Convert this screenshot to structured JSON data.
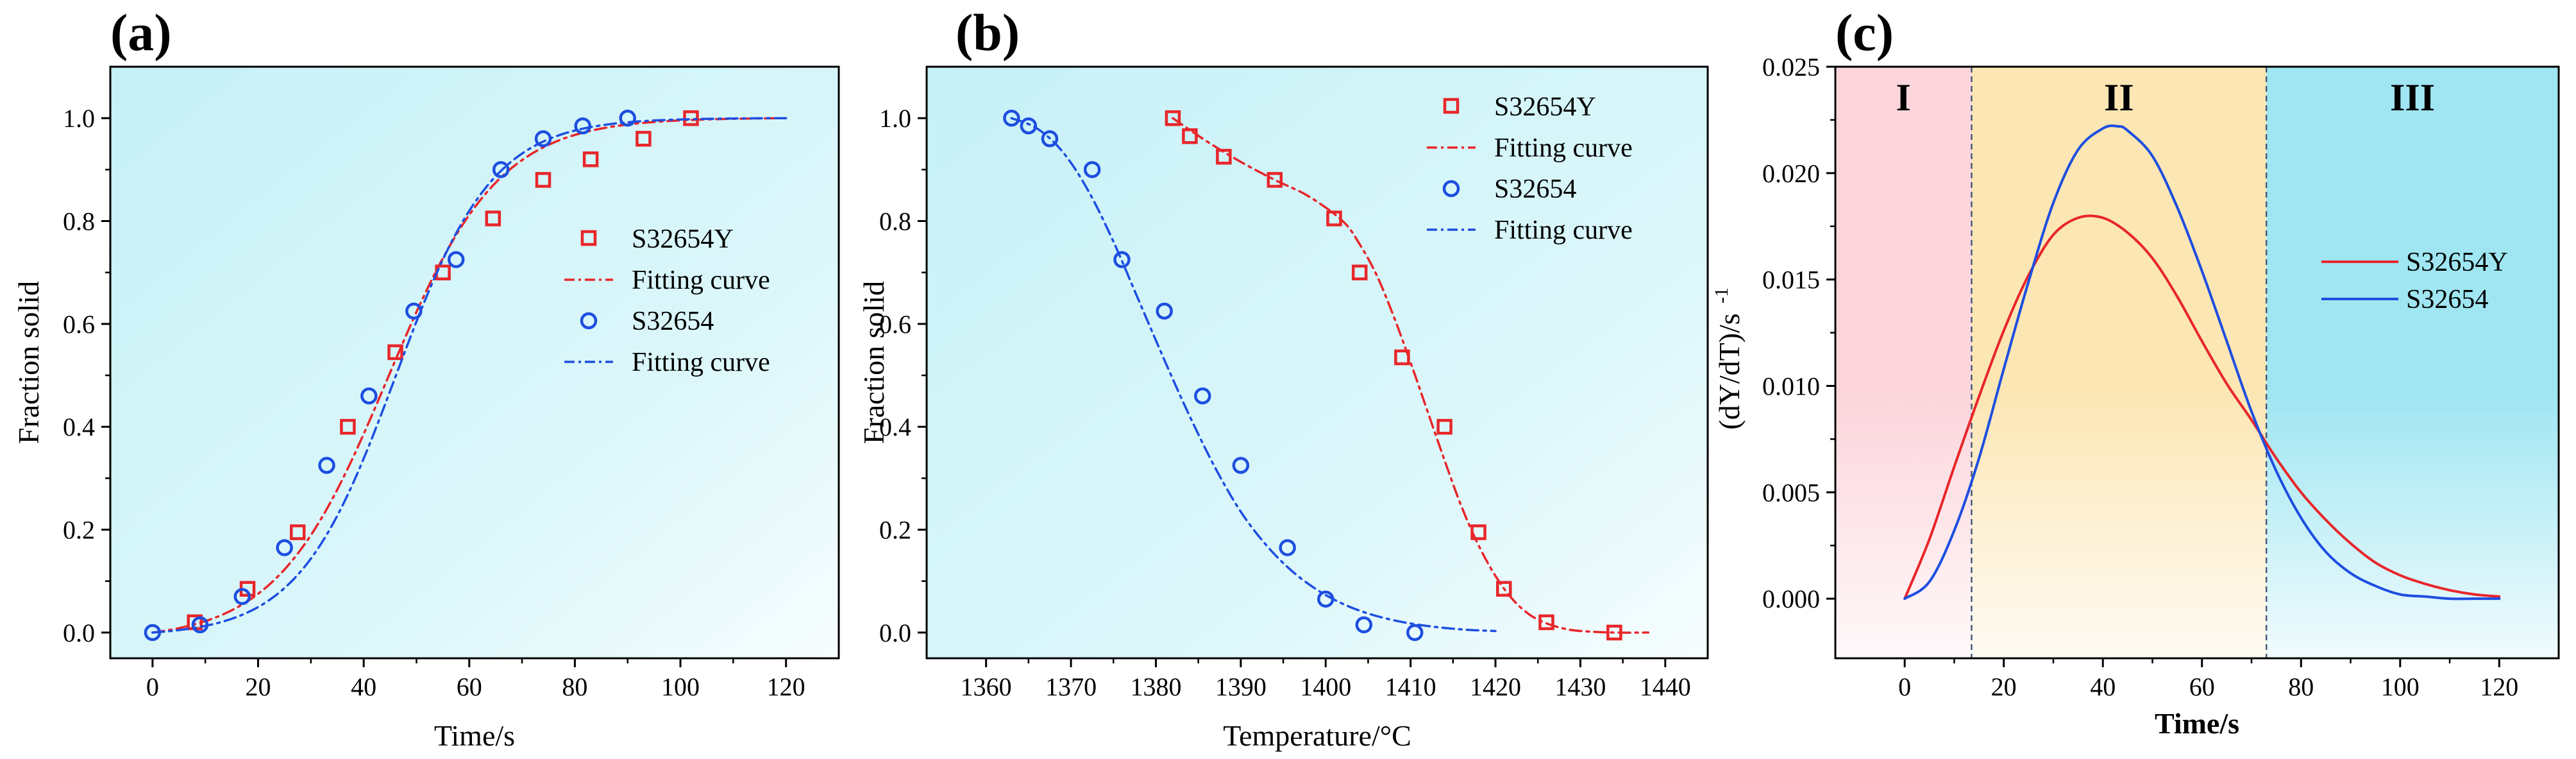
{
  "chart_data": [
    {
      "panel_label": "(a)",
      "type": "scatter",
      "xlabel": "Time/s",
      "ylabel": "Fraction solid",
      "xlim": [
        -8,
        130
      ],
      "ylim": [
        -0.05,
        1.1
      ],
      "xticks": [
        0,
        20,
        40,
        60,
        80,
        100,
        120
      ],
      "xtick_labels": [
        "0",
        "20",
        "40",
        "60",
        "80",
        "100",
        "120"
      ],
      "yticks": [
        0,
        0.2,
        0.4,
        0.6,
        0.8,
        1.0
      ],
      "ytick_labels": [
        "0.0",
        "0.2",
        "0.4",
        "0.6",
        "0.8",
        "1.0"
      ],
      "legend_position": "right",
      "background": "#c9f3f8",
      "series": [
        {
          "name": "S32654Y",
          "kind": "markers",
          "marker": "square",
          "color": "#e8262a",
          "x": [
            8,
            18,
            27.5,
            37,
            46,
            55,
            64.5,
            74,
            83,
            93,
            102
          ],
          "y": [
            0.02,
            0.085,
            0.195,
            0.4,
            0.545,
            0.7,
            0.805,
            0.88,
            0.92,
            0.96,
            1.0
          ]
        },
        {
          "name": "Fitting curve",
          "kind": "line",
          "dash": "dashdot",
          "color": "#e8262a",
          "fit": "logistic",
          "params": {
            "midpoint": 44.5,
            "scale": 10.5
          },
          "x_range": [
            0,
            120
          ]
        },
        {
          "name": "S32654",
          "kind": "markers",
          "marker": "circle",
          "color": "#1d4ee0",
          "x": [
            0,
            9,
            17,
            25,
            33,
            41,
            49.5,
            57.5,
            66,
            74,
            81.5,
            90
          ],
          "y": [
            0.0,
            0.015,
            0.07,
            0.165,
            0.325,
            0.46,
            0.625,
            0.725,
            0.9,
            0.96,
            0.985,
            1.0
          ]
        },
        {
          "name": "Fitting curve",
          "kind": "line",
          "dash": "dashdot",
          "color": "#1d4ee0",
          "fit": "logistic",
          "params": {
            "midpoint": 46,
            "scale": 9.2
          },
          "x_range": [
            0,
            120
          ]
        }
      ]
    },
    {
      "panel_label": "(b)",
      "type": "scatter",
      "xlabel": "Temperature/°C",
      "ylabel": "Fraction solid",
      "xlim": [
        1353,
        1445
      ],
      "ylim": [
        -0.05,
        1.1
      ],
      "xticks": [
        1360,
        1370,
        1380,
        1390,
        1400,
        1410,
        1420,
        1430,
        1440
      ],
      "xtick_labels": [
        "1360",
        "1370",
        "1380",
        "1390",
        "1400",
        "1410",
        "1420",
        "1430",
        "1440"
      ],
      "yticks": [
        0,
        0.2,
        0.4,
        0.6,
        0.8,
        1.0
      ],
      "ytick_labels": [
        "0.0",
        "0.2",
        "0.4",
        "0.6",
        "0.8",
        "1.0"
      ],
      "legend_position": "top-right",
      "background": "#c9f3f8",
      "series": [
        {
          "name": "S32654Y",
          "kind": "markers",
          "marker": "square",
          "color": "#e8262a",
          "x": [
            1382,
            1384,
            1388,
            1394,
            1401,
            1404,
            1409,
            1414,
            1418,
            1421,
            1426,
            1434
          ],
          "y": [
            1.0,
            0.965,
            0.925,
            0.88,
            0.805,
            0.7,
            0.535,
            0.4,
            0.195,
            0.085,
            0.02,
            0.0
          ]
        },
        {
          "name": "Fitting curve",
          "kind": "line",
          "dash": "dashdot",
          "color": "#e8262a",
          "x": [
            1382,
            1386,
            1390,
            1394,
            1398,
            1402,
            1404,
            1406,
            1408,
            1410,
            1412,
            1414,
            1416,
            1418,
            1420,
            1422,
            1424,
            1426,
            1428,
            1430,
            1434,
            1438
          ],
          "y": [
            1.0,
            0.955,
            0.915,
            0.88,
            0.848,
            0.8,
            0.755,
            0.695,
            0.615,
            0.525,
            0.43,
            0.335,
            0.245,
            0.17,
            0.11,
            0.065,
            0.035,
            0.018,
            0.008,
            0.003,
            0.0,
            0.0
          ]
        },
        {
          "name": "S32654",
          "kind": "markers",
          "marker": "circle",
          "color": "#1d4ee0",
          "x": [
            1363,
            1365,
            1367.5,
            1372.5,
            1376,
            1381,
            1385.5,
            1390,
            1395.5,
            1400,
            1404.5,
            1410.5
          ],
          "y": [
            1.0,
            0.985,
            0.96,
            0.9,
            0.725,
            0.625,
            0.46,
            0.325,
            0.165,
            0.065,
            0.015,
            0.0
          ]
        },
        {
          "name": "Fitting curve",
          "kind": "line",
          "dash": "dashdot",
          "color": "#1d4ee0",
          "x": [
            1363,
            1366,
            1369,
            1372,
            1375,
            1378,
            1381,
            1384,
            1387,
            1390,
            1393,
            1396,
            1399,
            1402,
            1405,
            1408,
            1411,
            1414,
            1417,
            1420
          ],
          "y": [
            1.0,
            0.98,
            0.935,
            0.86,
            0.76,
            0.645,
            0.53,
            0.42,
            0.32,
            0.235,
            0.17,
            0.12,
            0.083,
            0.056,
            0.037,
            0.024,
            0.015,
            0.009,
            0.005,
            0.003
          ]
        }
      ]
    },
    {
      "panel_label": "(c)",
      "type": "line",
      "xlabel": "Time/s",
      "ylabel": "(dY/dT)/s",
      "ylabel_superscript": "-1",
      "xlim": [
        -14,
        132
      ],
      "ylim": [
        -0.0028,
        0.025
      ],
      "xticks": [
        0,
        20,
        40,
        60,
        80,
        100,
        120
      ],
      "xtick_labels": [
        "0",
        "20",
        "40",
        "60",
        "80",
        "100",
        "120"
      ],
      "yticks": [
        0,
        0.005,
        0.01,
        0.015,
        0.02,
        0.025
      ],
      "ytick_labels": [
        "0.000",
        "0.005",
        "0.010",
        "0.015",
        "0.020",
        "0.025"
      ],
      "legend_position": "right",
      "regions": [
        {
          "label": "I",
          "x_range": [
            -14,
            13.5
          ],
          "color": "#fcd5dc"
        },
        {
          "label": "II",
          "x_range": [
            13.5,
            73
          ],
          "color": "#fce6b4"
        },
        {
          "label": "III",
          "x_range": [
            73,
            132
          ],
          "color": "#9fe6f2"
        }
      ],
      "region_boundaries": [
        13.5,
        73
      ],
      "series": [
        {
          "name": "S32654Y",
          "color": "#e8262a",
          "x": [
            0,
            5,
            10,
            15,
            20,
            25,
            30,
            35,
            40,
            45,
            50,
            55,
            60,
            65,
            70,
            75,
            80,
            85,
            90,
            95,
            100,
            105,
            110,
            115,
            120
          ],
          "y": [
            0.0,
            0.0028,
            0.0062,
            0.0095,
            0.0126,
            0.0152,
            0.0171,
            0.0179,
            0.0179,
            0.0172,
            0.016,
            0.0142,
            0.0121,
            0.0101,
            0.0084,
            0.0066,
            0.005,
            0.0037,
            0.0026,
            0.0017,
            0.0011,
            0.0007,
            0.0004,
            0.0002,
            0.0001
          ]
        },
        {
          "name": "S32654",
          "color": "#1d4ee0",
          "x": [
            0,
            5,
            10,
            15,
            20,
            25,
            30,
            35,
            40,
            43,
            45,
            50,
            55,
            60,
            65,
            70,
            75,
            80,
            85,
            90,
            95,
            100,
            105,
            110,
            115,
            120
          ],
          "y": [
            0.0,
            0.0008,
            0.0032,
            0.0066,
            0.0108,
            0.0149,
            0.0186,
            0.0211,
            0.0221,
            0.0222,
            0.022,
            0.0208,
            0.0184,
            0.0154,
            0.0121,
            0.0088,
            0.006,
            0.0038,
            0.0022,
            0.0012,
            0.0006,
            0.0002,
            0.0001,
            0.0,
            0.0,
            0.0
          ]
        }
      ]
    }
  ]
}
